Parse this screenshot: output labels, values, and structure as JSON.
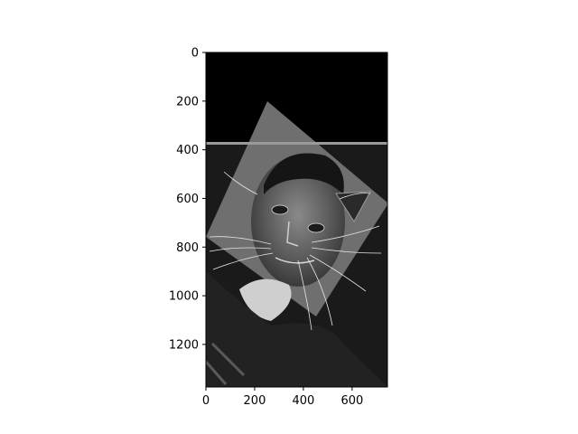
{
  "chart_data": {
    "type": "heatmap",
    "title": "",
    "xlabel": "",
    "ylabel": "",
    "colormap": "gray",
    "xlim": [
      0,
      745
    ],
    "ylim": [
      1375,
      0
    ],
    "x_ticks": [
      0,
      200,
      400,
      600
    ],
    "y_ticks": [
      0,
      200,
      400,
      600,
      800,
      1000,
      1200
    ],
    "image_content": "grayscale edge-filtered hybrid image of a man's face blended with a cat's face, rotated square region",
    "colors": {
      "background": "#ffffff",
      "image_black": "#000000",
      "axes": "#000000"
    }
  }
}
